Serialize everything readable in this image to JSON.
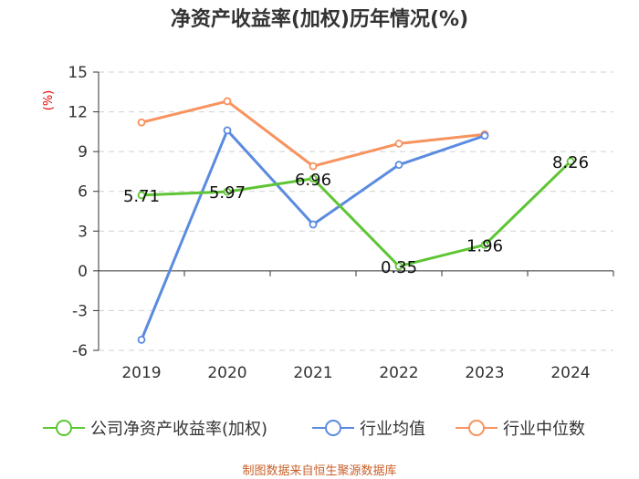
{
  "title": "净资产收益率(加权)历年情况(%)",
  "source": "制图数据来自恒生聚源数据库",
  "chart_data": {
    "type": "line",
    "title": "净资产收益率(加权)历年情况(%)",
    "ylabel": "(%)",
    "xlabel": "",
    "categories": [
      "2019",
      "2020",
      "2021",
      "2022",
      "2023",
      "2024"
    ],
    "ylim": [
      -6,
      15
    ],
    "yticks": [
      -6,
      -3,
      0,
      3,
      6,
      9,
      12,
      15
    ],
    "ytick_labels": [
      "-6",
      "-3",
      "0",
      "3",
      "6",
      "9",
      "12",
      "15"
    ],
    "grid": true,
    "legend_position": "bottom",
    "series": [
      {
        "name": "公司净资产收益率(加权)",
        "color": "#5ec535",
        "values": [
          5.71,
          5.97,
          6.96,
          0.35,
          1.96,
          8.26
        ],
        "labels": [
          "5.71",
          "5.97",
          "6.96",
          "0.35",
          "1.96",
          "8.26"
        ]
      },
      {
        "name": "行业均值",
        "color": "#5b8be0",
        "values": [
          -5.2,
          10.6,
          3.5,
          8.0,
          10.2,
          null
        ]
      },
      {
        "name": "行业中位数",
        "color": "#f7935e",
        "values": [
          11.2,
          12.8,
          7.9,
          9.6,
          10.3,
          null
        ]
      }
    ]
  }
}
